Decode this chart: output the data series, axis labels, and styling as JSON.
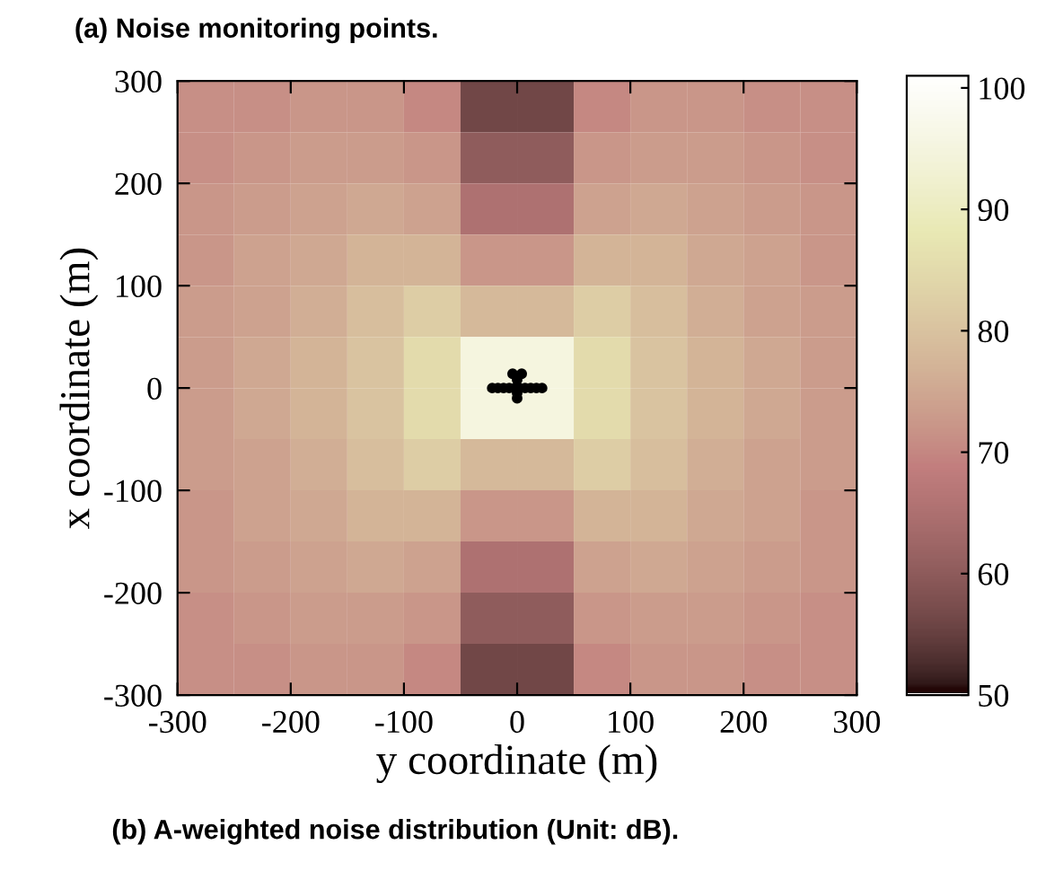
{
  "chart_data": {
    "type": "heatmap",
    "title": "(a) Noise monitoring points.",
    "xlabel": "y coordinate (m)",
    "ylabel": "x coordinate (m)",
    "annotations": [
      "(b) A-weighted noise distribution (Unit: dB)."
    ],
    "xlim": [
      -300,
      300
    ],
    "ylim": [
      -300,
      300
    ],
    "xticks": [
      -300,
      -200,
      -100,
      0,
      100,
      200,
      300
    ],
    "yticks": [
      -300,
      -200,
      -100,
      0,
      100,
      200,
      300
    ],
    "clim": [
      50,
      101
    ],
    "cticks": [
      50,
      60,
      70,
      80,
      90,
      100
    ],
    "cells": [
      [
        71,
        71,
        72,
        72,
        70,
        56,
        56,
        70,
        72,
        72,
        71,
        71
      ],
      [
        71,
        72,
        73,
        73,
        72,
        60,
        60,
        72,
        73,
        73,
        72,
        71
      ],
      [
        72,
        73,
        74,
        75,
        74,
        65,
        65,
        74,
        75,
        74,
        73,
        72
      ],
      [
        72,
        74,
        75,
        77,
        77,
        72,
        72,
        77,
        77,
        75,
        74,
        72
      ],
      [
        73,
        74,
        76,
        79,
        82,
        78,
        78,
        82,
        79,
        76,
        74,
        73
      ],
      [
        73,
        75,
        77,
        80,
        85,
        95,
        95,
        85,
        80,
        77,
        75,
        73
      ],
      [
        73,
        75,
        77,
        80,
        85,
        95,
        95,
        85,
        80,
        77,
        75,
        73
      ],
      [
        73,
        74,
        76,
        79,
        82,
        78,
        78,
        82,
        79,
        76,
        74,
        73
      ],
      [
        72,
        74,
        75,
        77,
        77,
        72,
        72,
        77,
        77,
        75,
        74,
        72
      ],
      [
        72,
        73,
        74,
        75,
        74,
        65,
        65,
        74,
        75,
        74,
        73,
        72
      ],
      [
        71,
        72,
        73,
        73,
        72,
        60,
        60,
        72,
        73,
        73,
        72,
        71
      ],
      [
        71,
        71,
        72,
        72,
        70,
        56,
        56,
        70,
        72,
        72,
        71,
        71
      ]
    ],
    "series": [
      {
        "type": "scatter",
        "color": "#000000",
        "marker": "circle",
        "x": [
          -22,
          -17,
          -12,
          -7,
          -2,
          2,
          7,
          12,
          17,
          22,
          -4,
          4,
          0,
          0,
          0
        ],
        "values": [
          0,
          0,
          0,
          0,
          0,
          0,
          0,
          0,
          0,
          0,
          14,
          14,
          8,
          -5,
          -10
        ]
      }
    ]
  }
}
